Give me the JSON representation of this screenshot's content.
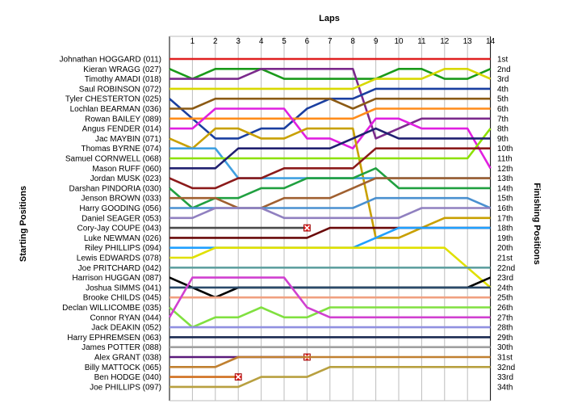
{
  "chart_data": {
    "type": "line",
    "title": "",
    "xlabel": "Laps",
    "ylabel_left": "Starting Positions",
    "ylabel_right": "Finishing Positions",
    "x": [
      1,
      2,
      3,
      4,
      5,
      6,
      7,
      8,
      9,
      10,
      11,
      12,
      13,
      14
    ],
    "xlim": [
      0,
      14
    ],
    "ylim": [
      1,
      34
    ],
    "y_inverted": true,
    "grid": "vertical",
    "starting_grid": [
      "Johnathan HOGGARD (011)",
      "Kieran WRAGG (027)",
      "Timothy AMADI (018)",
      "Saul ROBINSON (072)",
      "Tyler CHESTERTON (025)",
      "Lochlan BEARMAN (036)",
      "Rowan BAILEY (089)",
      "Angus FENDER (014)",
      "Jac MAYBIN (071)",
      "Thomas BYRNE (074)",
      "Samuel CORNWELL (068)",
      "Mason RUFF (060)",
      "Jordan MUSK (023)",
      "Darshan PINDORIA (030)",
      "Jenson BROWN (033)",
      "Harry GOODING (056)",
      "Daniel SEAGER (053)",
      "Cory-Jay COUPE (043)",
      "Luke NEWMAN (026)",
      "Riley PHILLIPS (094)",
      "Lewis EDWARDS (078)",
      "Joe PRITCHARD (042)",
      "Harrison HUGGAN (087)",
      "Joshua SIMMS (041)",
      "Brooke CHILDS (045)",
      "Declan WILLICOMBE (035)",
      "Connor RYAN (044)",
      "Jack DEAKIN (052)",
      "Harry EPHREMSEN (063)",
      "James POTTER (088)",
      "Alex GRANT (038)",
      "Billy MATTOCK (065)",
      "Ben HODGE (040)",
      "Joe PHILLIPS (097)"
    ],
    "finishing_labels": [
      "1st",
      "2nd",
      "3rd",
      "4th",
      "5th",
      "6th",
      "7th",
      "8th",
      "9th",
      "10th",
      "11th",
      "12th",
      "13th",
      "14th",
      "15th",
      "16th",
      "17th",
      "18th",
      "19th",
      "20th",
      "21st",
      "22nd",
      "23rd",
      "24th",
      "25th",
      "26th",
      "27th",
      "28th",
      "29th",
      "30th",
      "31st",
      "32nd",
      "33rd",
      "34th"
    ],
    "series": [
      {
        "start": 1,
        "color": "#e02020",
        "positions": [
          1,
          1,
          1,
          1,
          1,
          1,
          1,
          1,
          1,
          1,
          1,
          1,
          1,
          1
        ],
        "retired": false
      },
      {
        "start": 2,
        "color": "#1a9a1a",
        "positions": [
          3,
          2,
          2,
          2,
          3,
          3,
          3,
          3,
          3,
          2,
          2,
          3,
          3,
          2
        ],
        "retired": false
      },
      {
        "start": 3,
        "color": "#7b2a8c",
        "positions": [
          3,
          3,
          3,
          2,
          2,
          2,
          2,
          2,
          9,
          8,
          7,
          7,
          7,
          7
        ],
        "retired": false
      },
      {
        "start": 4,
        "color": "#d8d800",
        "positions": [
          4,
          4,
          4,
          4,
          4,
          4,
          4,
          4,
          3,
          3,
          3,
          2,
          2,
          3
        ],
        "retired": false
      },
      {
        "start": 5,
        "color": "#1a3fa0",
        "positions": [
          7,
          9,
          9,
          8,
          8,
          6,
          5,
          5,
          4,
          4,
          4,
          4,
          4,
          4
        ],
        "retired": false
      },
      {
        "start": 6,
        "color": "#8b5a14",
        "positions": [
          6,
          5,
          5,
          5,
          5,
          5,
          5,
          6,
          5,
          5,
          5,
          5,
          5,
          5
        ],
        "retired": false
      },
      {
        "start": 7,
        "color": "#ff8c1a",
        "positions": [
          7,
          7,
          7,
          7,
          7,
          7,
          7,
          7,
          6,
          6,
          6,
          6,
          6,
          6
        ],
        "retired": false
      },
      {
        "start": 8,
        "color": "#e020e0",
        "positions": [
          8,
          6,
          6,
          6,
          6,
          9,
          9,
          10,
          7,
          7,
          8,
          8,
          8,
          12
        ],
        "retired": false
      },
      {
        "start": 9,
        "color": "#c8a000",
        "positions": [
          10,
          8,
          8,
          9,
          9,
          8,
          8,
          8,
          19,
          19,
          18,
          17,
          17,
          17
        ],
        "retired": false
      },
      {
        "start": 10,
        "color": "#40a0e0",
        "positions": [
          10,
          10,
          13,
          13,
          13,
          13,
          13,
          13,
          13,
          13,
          13,
          13,
          13,
          13
        ],
        "retired": false
      },
      {
        "start": 11,
        "color": "#8ce000",
        "positions": [
          11,
          11,
          11,
          11,
          11,
          11,
          11,
          11,
          11,
          11,
          11,
          11,
          11,
          8
        ],
        "retired": false
      },
      {
        "start": 12,
        "color": "#202070",
        "positions": [
          12,
          12,
          10,
          10,
          10,
          10,
          10,
          9,
          8,
          9,
          9,
          9,
          9,
          9
        ],
        "retired": false
      },
      {
        "start": 13,
        "color": "#8b1a1a",
        "positions": [
          14,
          14,
          13,
          13,
          12,
          12,
          12,
          12,
          10,
          10,
          10,
          10,
          10,
          10
        ],
        "retired": false
      },
      {
        "start": 14,
        "color": "#20a040",
        "positions": [
          16,
          15,
          15,
          14,
          14,
          13,
          13,
          13,
          12,
          14,
          14,
          14,
          14,
          14
        ],
        "retired": false
      },
      {
        "start": 15,
        "color": "#a06030",
        "positions": [
          15,
          15,
          16,
          16,
          15,
          15,
          15,
          14,
          13,
          13,
          13,
          13,
          13,
          13
        ],
        "retired": false
      },
      {
        "start": 16,
        "color": "#4a90d0",
        "positions": [
          16,
          16,
          16,
          16,
          16,
          16,
          16,
          16,
          15,
          15,
          15,
          15,
          15,
          16
        ],
        "retired": false
      },
      {
        "start": 17,
        "color": "#9080c0",
        "positions": [
          17,
          16,
          16,
          16,
          17,
          17,
          17,
          17,
          17,
          17,
          16,
          16,
          16,
          16
        ],
        "retired": false
      },
      {
        "start": 18,
        "color": "#4a4a4a",
        "positions": [
          18,
          18,
          18,
          18,
          18,
          18
        ],
        "retired": true
      },
      {
        "start": 19,
        "color": "#6a0a0a",
        "positions": [
          19,
          19,
          19,
          19,
          19,
          19,
          18,
          18,
          18,
          18,
          18,
          18,
          18,
          18
        ],
        "retired": false
      },
      {
        "start": 20,
        "color": "#20a0ff",
        "positions": [
          20,
          20,
          20,
          20,
          20,
          20,
          20,
          20,
          19,
          18,
          18,
          18,
          18,
          18
        ],
        "retired": false
      },
      {
        "start": 21,
        "color": "#e0e000",
        "positions": [
          21,
          20,
          20,
          20,
          20,
          20,
          20,
          20,
          20,
          20,
          20,
          20,
          22,
          24
        ],
        "retired": false
      },
      {
        "start": 22,
        "color": "#60a0a0",
        "positions": [
          22,
          22,
          22,
          22,
          22,
          22,
          22,
          22,
          22,
          22,
          22,
          22,
          22,
          22
        ],
        "retired": false
      },
      {
        "start": 23,
        "color": "#000000",
        "positions": [
          24,
          25,
          24,
          24,
          24,
          24,
          24,
          24,
          24,
          24,
          24,
          24,
          24,
          23
        ],
        "retired": false
      },
      {
        "start": 24,
        "color": "#2a4a6a",
        "positions": [
          24,
          24,
          24,
          24,
          24,
          24,
          24,
          24,
          24,
          24,
          24,
          24,
          24,
          24
        ],
        "retired": false
      },
      {
        "start": 25,
        "color": "#f0a080",
        "positions": [
          25,
          25,
          25,
          25,
          25,
          25,
          25,
          25,
          25,
          25,
          25,
          25,
          25,
          25
        ],
        "retired": false
      },
      {
        "start": 26,
        "color": "#80e040",
        "positions": [
          28,
          27,
          27,
          26,
          27,
          27,
          26,
          26,
          26,
          26,
          26,
          26,
          26,
          26
        ],
        "retired": false
      },
      {
        "start": 27,
        "color": "#d040d0",
        "positions": [
          23,
          23,
          23,
          23,
          23,
          26,
          27,
          27,
          27,
          27,
          27,
          27,
          27,
          27
        ],
        "retired": false
      },
      {
        "start": 28,
        "color": "#9090e0",
        "positions": [
          28,
          28,
          28,
          28,
          28,
          28,
          28,
          28,
          28,
          28,
          28,
          28,
          28,
          28
        ],
        "retired": false
      },
      {
        "start": 29,
        "color": "#1a2a50",
        "positions": [
          29,
          29,
          29,
          29,
          29,
          29,
          29,
          29,
          29,
          29,
          29,
          29,
          29,
          29
        ],
        "retired": false
      },
      {
        "start": 30,
        "color": "#a0a0a0",
        "positions": [
          30,
          30,
          30,
          30,
          30,
          30,
          30,
          30,
          30,
          30,
          30,
          30,
          30,
          30
        ],
        "retired": false
      },
      {
        "start": 31,
        "color": "#5a1a7a",
        "positions": [
          31,
          31,
          31,
          31,
          31,
          31
        ],
        "retired": true
      },
      {
        "start": 32,
        "color": "#c08030",
        "positions": [
          32,
          32,
          31,
          31,
          31,
          31,
          31,
          31,
          31,
          31,
          31,
          31,
          31,
          31
        ],
        "retired": false
      },
      {
        "start": 33,
        "color": "#d07020",
        "positions": [
          33,
          33,
          33
        ],
        "retired": true
      },
      {
        "start": 34,
        "color": "#b8a040",
        "positions": [
          34,
          34,
          34,
          33,
          33,
          33,
          32,
          32,
          32,
          32,
          32,
          32,
          32,
          32
        ],
        "retired": false
      }
    ]
  }
}
